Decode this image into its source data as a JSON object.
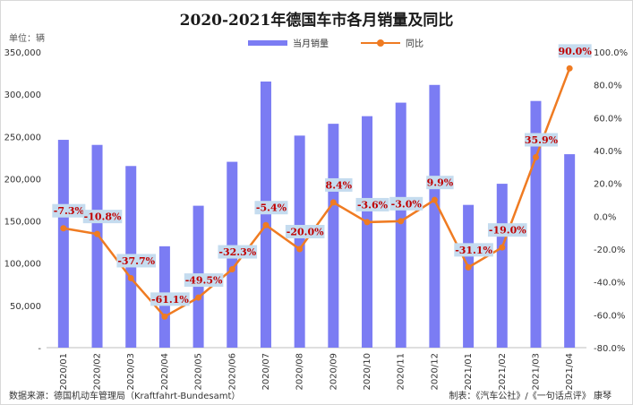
{
  "title": "2020-2021年德国车市各月销量及同比",
  "unit_label": "单位：辆",
  "source": "数据来源：德国机动车管理局（Kraftfahrt-Bundesamt）",
  "credit": "制表：《汽车公社》/《一句话点评》 康琴",
  "colors": {
    "bar": "#7b7cf3",
    "line": "#ef7b22",
    "label_text": "#c00000",
    "label_bg": "#c5dcef"
  },
  "chart_data": {
    "type": "bar",
    "title": "2020-2021年德国车市各月销量及同比",
    "categories": [
      "2020/01",
      "2020/02",
      "2020/03",
      "2020/04",
      "2020/05",
      "2020/06",
      "2020/07",
      "2020/08",
      "2020/09",
      "2020/10",
      "2020/11",
      "2020/12",
      "2021/01",
      "2021/02",
      "2021/03",
      "2021/04"
    ],
    "series": [
      {
        "name": "当月销量",
        "type": "bar",
        "axis": "left",
        "values": [
          246000,
          240000,
          215000,
          120000,
          168000,
          220000,
          315000,
          251000,
          265000,
          274000,
          290000,
          311000,
          169000,
          194000,
          292000,
          229000
        ]
      },
      {
        "name": "同比",
        "type": "line",
        "axis": "right",
        "values": [
          -7.3,
          -10.8,
          -37.7,
          -61.1,
          -49.5,
          -32.3,
          -5.4,
          -20.0,
          8.4,
          -3.6,
          -3.0,
          9.9,
          -31.1,
          -19.0,
          35.9,
          90.0
        ],
        "labels": [
          "-7.3%",
          "-10.8%",
          "-37.7%",
          "-61.1%",
          "-49.5%",
          "-32.3%",
          "-5.4%",
          "-20.0%",
          "8.4%",
          "-3.6%",
          "-3.0%",
          "9.9%",
          "-31.1%",
          "-19.0%",
          "35.9%",
          "90.0%"
        ]
      }
    ],
    "y_left": {
      "min": 0,
      "max": 350000,
      "ticks": [
        0,
        50000,
        100000,
        150000,
        200000,
        250000,
        300000,
        350000
      ],
      "tick_labels": [
        "-",
        "50,000",
        "100,000",
        "150,000",
        "200,000",
        "250,000",
        "300,000",
        "350,000"
      ]
    },
    "y_right": {
      "min": -80,
      "max": 100,
      "ticks": [
        -80,
        -60,
        -40,
        -20,
        0,
        20,
        40,
        60,
        80,
        100
      ],
      "tick_labels": [
        "-80.0%",
        "-60.0%",
        "-40.0%",
        "-20.0%",
        "0.0%",
        "20.0%",
        "40.0%",
        "60.0%",
        "80.0%",
        "100.0%"
      ]
    },
    "grid": false,
    "legend": "top-center"
  }
}
